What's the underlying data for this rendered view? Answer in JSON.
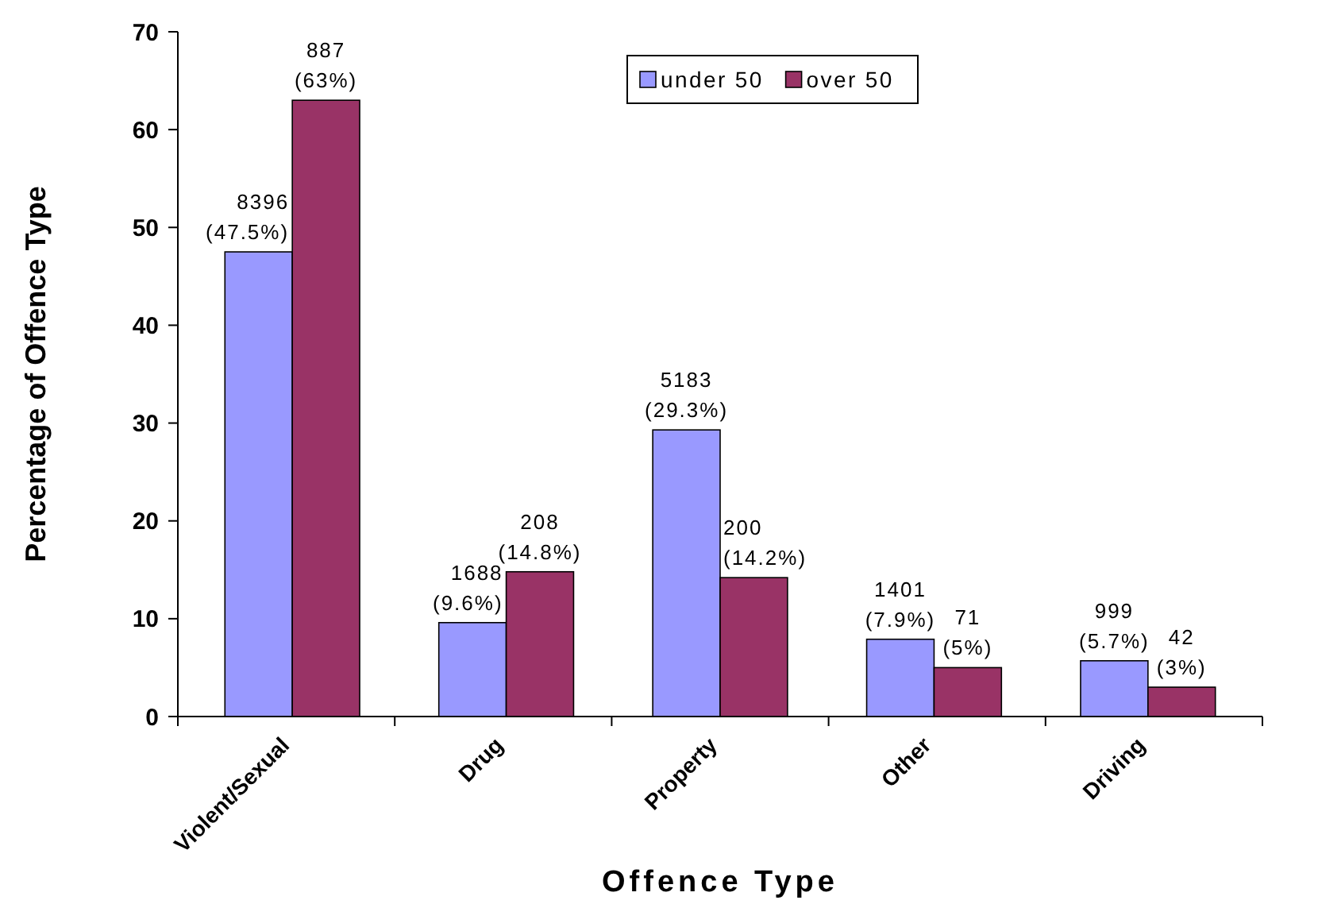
{
  "chart_data": {
    "type": "bar",
    "xlabel": "Offence Type",
    "ylabel": "Percentage of Offence Type",
    "categories": [
      "Violent/Sexual",
      "Drug",
      "Property",
      "Other",
      "Driving"
    ],
    "series": [
      {
        "name": "under 50",
        "color": "#9999ff",
        "values": [
          47.5,
          9.6,
          29.3,
          7.9,
          5.7
        ],
        "value_labels": [
          "8396 (47.5%)",
          "1688 (9.6%)",
          "5183 (29.3%)",
          "1401 (7.9%)",
          "999 (5.7%)"
        ]
      },
      {
        "name": "over 50",
        "color": "#993366",
        "values": [
          63,
          14.8,
          14.2,
          5,
          3
        ],
        "value_labels": [
          "887 (63%)",
          "208 (14.8%)",
          "200 (14.2%)",
          "71 (5%)",
          "42 (3%)"
        ]
      }
    ],
    "ylim": [
      0,
      70
    ],
    "yticks": [
      0,
      10,
      20,
      30,
      40,
      50,
      60,
      70
    ],
    "grid": false,
    "legend": "top"
  }
}
